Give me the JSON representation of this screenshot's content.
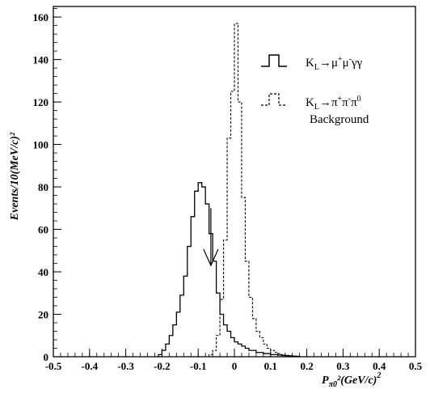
{
  "chart_data": {
    "type": "histogram",
    "xlabel": "P",
    "xlabel_sub": "π0",
    "xlabel_rest": "²(GeV/c)",
    "xlabel_sup": "2",
    "ylabel": "Events/10(MeV/c)²",
    "xlim": [
      -0.5,
      0.5
    ],
    "ylim": [
      0,
      165
    ],
    "x_ticks": [
      -0.5,
      -0.4,
      -0.3,
      -0.2,
      -0.1,
      0,
      0.1,
      0.2,
      0.3,
      0.4,
      0.5
    ],
    "x_tick_labels": [
      "-0.5",
      "-0.4",
      "-0.3",
      "-0.2",
      "-0.1",
      "0",
      "0.1",
      "0.2",
      "0.3",
      "0.4",
      "0.5"
    ],
    "y_ticks": [
      0,
      20,
      40,
      60,
      80,
      100,
      120,
      140,
      160
    ],
    "y_tick_labels": [
      "0",
      "20",
      "40",
      "60",
      "80",
      "100",
      "120",
      "140",
      "160"
    ],
    "grid": false,
    "legend_position": "top-right",
    "bin_width": 0.01,
    "series": [
      {
        "name": "K_L→μ⁺μ⁻γγ",
        "legend_main": "K",
        "legend_sub": "L",
        "legend_rest": "→μ",
        "legend_sup1": "+",
        "legend_mid": "μ",
        "legend_sup2": "-",
        "legend_end": "γγ",
        "style": "solid",
        "bins": [
          [
            -0.21,
            1
          ],
          [
            -0.2,
            3
          ],
          [
            -0.19,
            6
          ],
          [
            -0.18,
            10
          ],
          [
            -0.17,
            15
          ],
          [
            -0.16,
            21
          ],
          [
            -0.15,
            29
          ],
          [
            -0.14,
            38
          ],
          [
            -0.13,
            52
          ],
          [
            -0.12,
            66
          ],
          [
            -0.11,
            78
          ],
          [
            -0.1,
            82
          ],
          [
            -0.09,
            80
          ],
          [
            -0.08,
            72
          ],
          [
            -0.07,
            58
          ],
          [
            -0.06,
            45
          ],
          [
            -0.05,
            30
          ],
          [
            -0.04,
            20
          ],
          [
            -0.03,
            15
          ],
          [
            -0.02,
            12
          ],
          [
            -0.01,
            9
          ],
          [
            0.0,
            7
          ],
          [
            0.01,
            6
          ],
          [
            0.02,
            5
          ],
          [
            0.03,
            4
          ],
          [
            0.04,
            3
          ],
          [
            0.05,
            3
          ],
          [
            0.06,
            2
          ],
          [
            0.07,
            2
          ],
          [
            0.08,
            1.5
          ],
          [
            0.09,
            1.5
          ],
          [
            0.1,
            1
          ],
          [
            0.11,
            1
          ],
          [
            0.12,
            0.8
          ],
          [
            0.13,
            0.6
          ],
          [
            0.14,
            0.5
          ],
          [
            0.15,
            0.4
          ],
          [
            0.16,
            0.3
          ],
          [
            0.17,
            0.2
          ]
        ]
      },
      {
        "name": "K_L→π⁺π⁻π⁰ Background",
        "legend_main": "K",
        "legend_sub": "L",
        "legend_rest": "→π",
        "legend_sup1": "+",
        "legend_mid": "π",
        "legend_sup2": "-",
        "legend_end": "π",
        "legend_sup3": "0",
        "legend_line2": "Background",
        "style": "dashed",
        "bins": [
          [
            -0.07,
            1
          ],
          [
            -0.06,
            3
          ],
          [
            -0.05,
            10
          ],
          [
            -0.04,
            27
          ],
          [
            -0.03,
            55
          ],
          [
            -0.02,
            103
          ],
          [
            -0.01,
            125
          ],
          [
            0.0,
            157
          ],
          [
            0.01,
            120
          ],
          [
            0.02,
            75
          ],
          [
            0.03,
            45
          ],
          [
            0.04,
            28
          ],
          [
            0.05,
            18
          ],
          [
            0.06,
            12
          ],
          [
            0.07,
            9
          ],
          [
            0.08,
            6
          ],
          [
            0.09,
            4
          ],
          [
            0.1,
            3
          ],
          [
            0.11,
            2
          ],
          [
            0.12,
            1.5
          ],
          [
            0.13,
            1
          ],
          [
            0.14,
            0.7
          ],
          [
            0.15,
            0.5
          ],
          [
            0.16,
            0.3
          ],
          [
            0.17,
            0.2
          ]
        ]
      }
    ],
    "annotation": {
      "type": "arrow",
      "x": -0.065,
      "y_start": 70,
      "y_end": 43
    }
  }
}
